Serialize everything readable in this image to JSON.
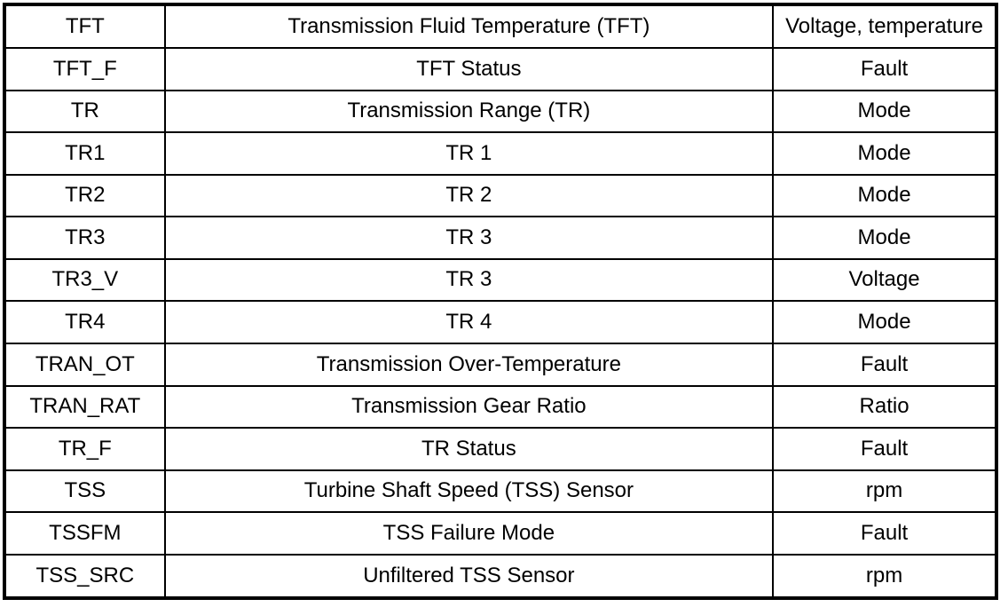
{
  "table": {
    "rows": [
      {
        "acronym": "TFT",
        "description": "Transmission Fluid Temperature (TFT)",
        "units": "Voltage, temperature"
      },
      {
        "acronym": "TFT_F",
        "description": "TFT Status",
        "units": "Fault"
      },
      {
        "acronym": "TR",
        "description": "Transmission Range (TR)",
        "units": "Mode"
      },
      {
        "acronym": "TR1",
        "description": "TR 1",
        "units": "Mode"
      },
      {
        "acronym": "TR2",
        "description": "TR 2",
        "units": "Mode"
      },
      {
        "acronym": "TR3",
        "description": "TR 3",
        "units": "Mode"
      },
      {
        "acronym": "TR3_V",
        "description": "TR 3",
        "units": "Voltage"
      },
      {
        "acronym": "TR4",
        "description": "TR 4",
        "units": "Mode"
      },
      {
        "acronym": "TRAN_OT",
        "description": "Transmission Over-Temperature",
        "units": "Fault"
      },
      {
        "acronym": "TRAN_RAT",
        "description": "Transmission Gear Ratio",
        "units": "Ratio"
      },
      {
        "acronym": "TR_F",
        "description": "TR Status",
        "units": "Fault"
      },
      {
        "acronym": "TSS",
        "description": "Turbine Shaft Speed (TSS) Sensor",
        "units": "rpm"
      },
      {
        "acronym": "TSSFM",
        "description": "TSS Failure Mode",
        "units": "Fault"
      },
      {
        "acronym": "TSS_SRC",
        "description": "Unfiltered TSS Sensor",
        "units": "rpm"
      }
    ],
    "border_color": "#000000",
    "background_color": "#ffffff"
  }
}
